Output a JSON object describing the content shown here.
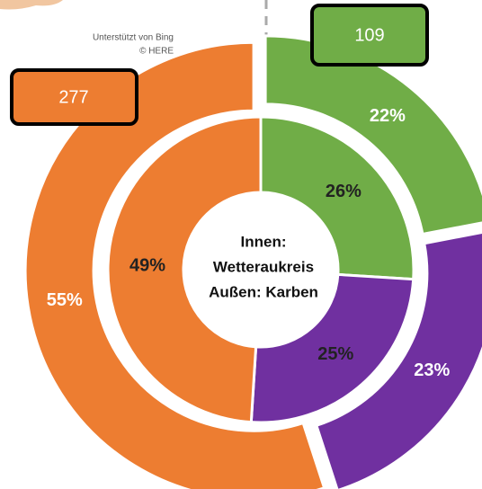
{
  "chart_data": {
    "type": "nested-donut",
    "center_label": [
      "Innen:",
      "Wetteraukreis",
      "Außen: Karben"
    ],
    "colors": [
      "#70ad47",
      "#7030a0",
      "#ed7d31"
    ],
    "series": [
      {
        "ring": "inner",
        "values": [
          26,
          25,
          49
        ],
        "value_labels": [
          "26%",
          "25%",
          "49%"
        ]
      },
      {
        "ring": "outer",
        "values": [
          22,
          23,
          55
        ],
        "value_labels": [
          "22%",
          "23%",
          "55%"
        ]
      }
    ],
    "annotations": [
      {
        "text": "109",
        "color": "#70ad47"
      },
      {
        "text": "277",
        "color": "#ed7d31"
      }
    ],
    "attribution": [
      "Unterstützt von Bing",
      "© HERE"
    ]
  }
}
